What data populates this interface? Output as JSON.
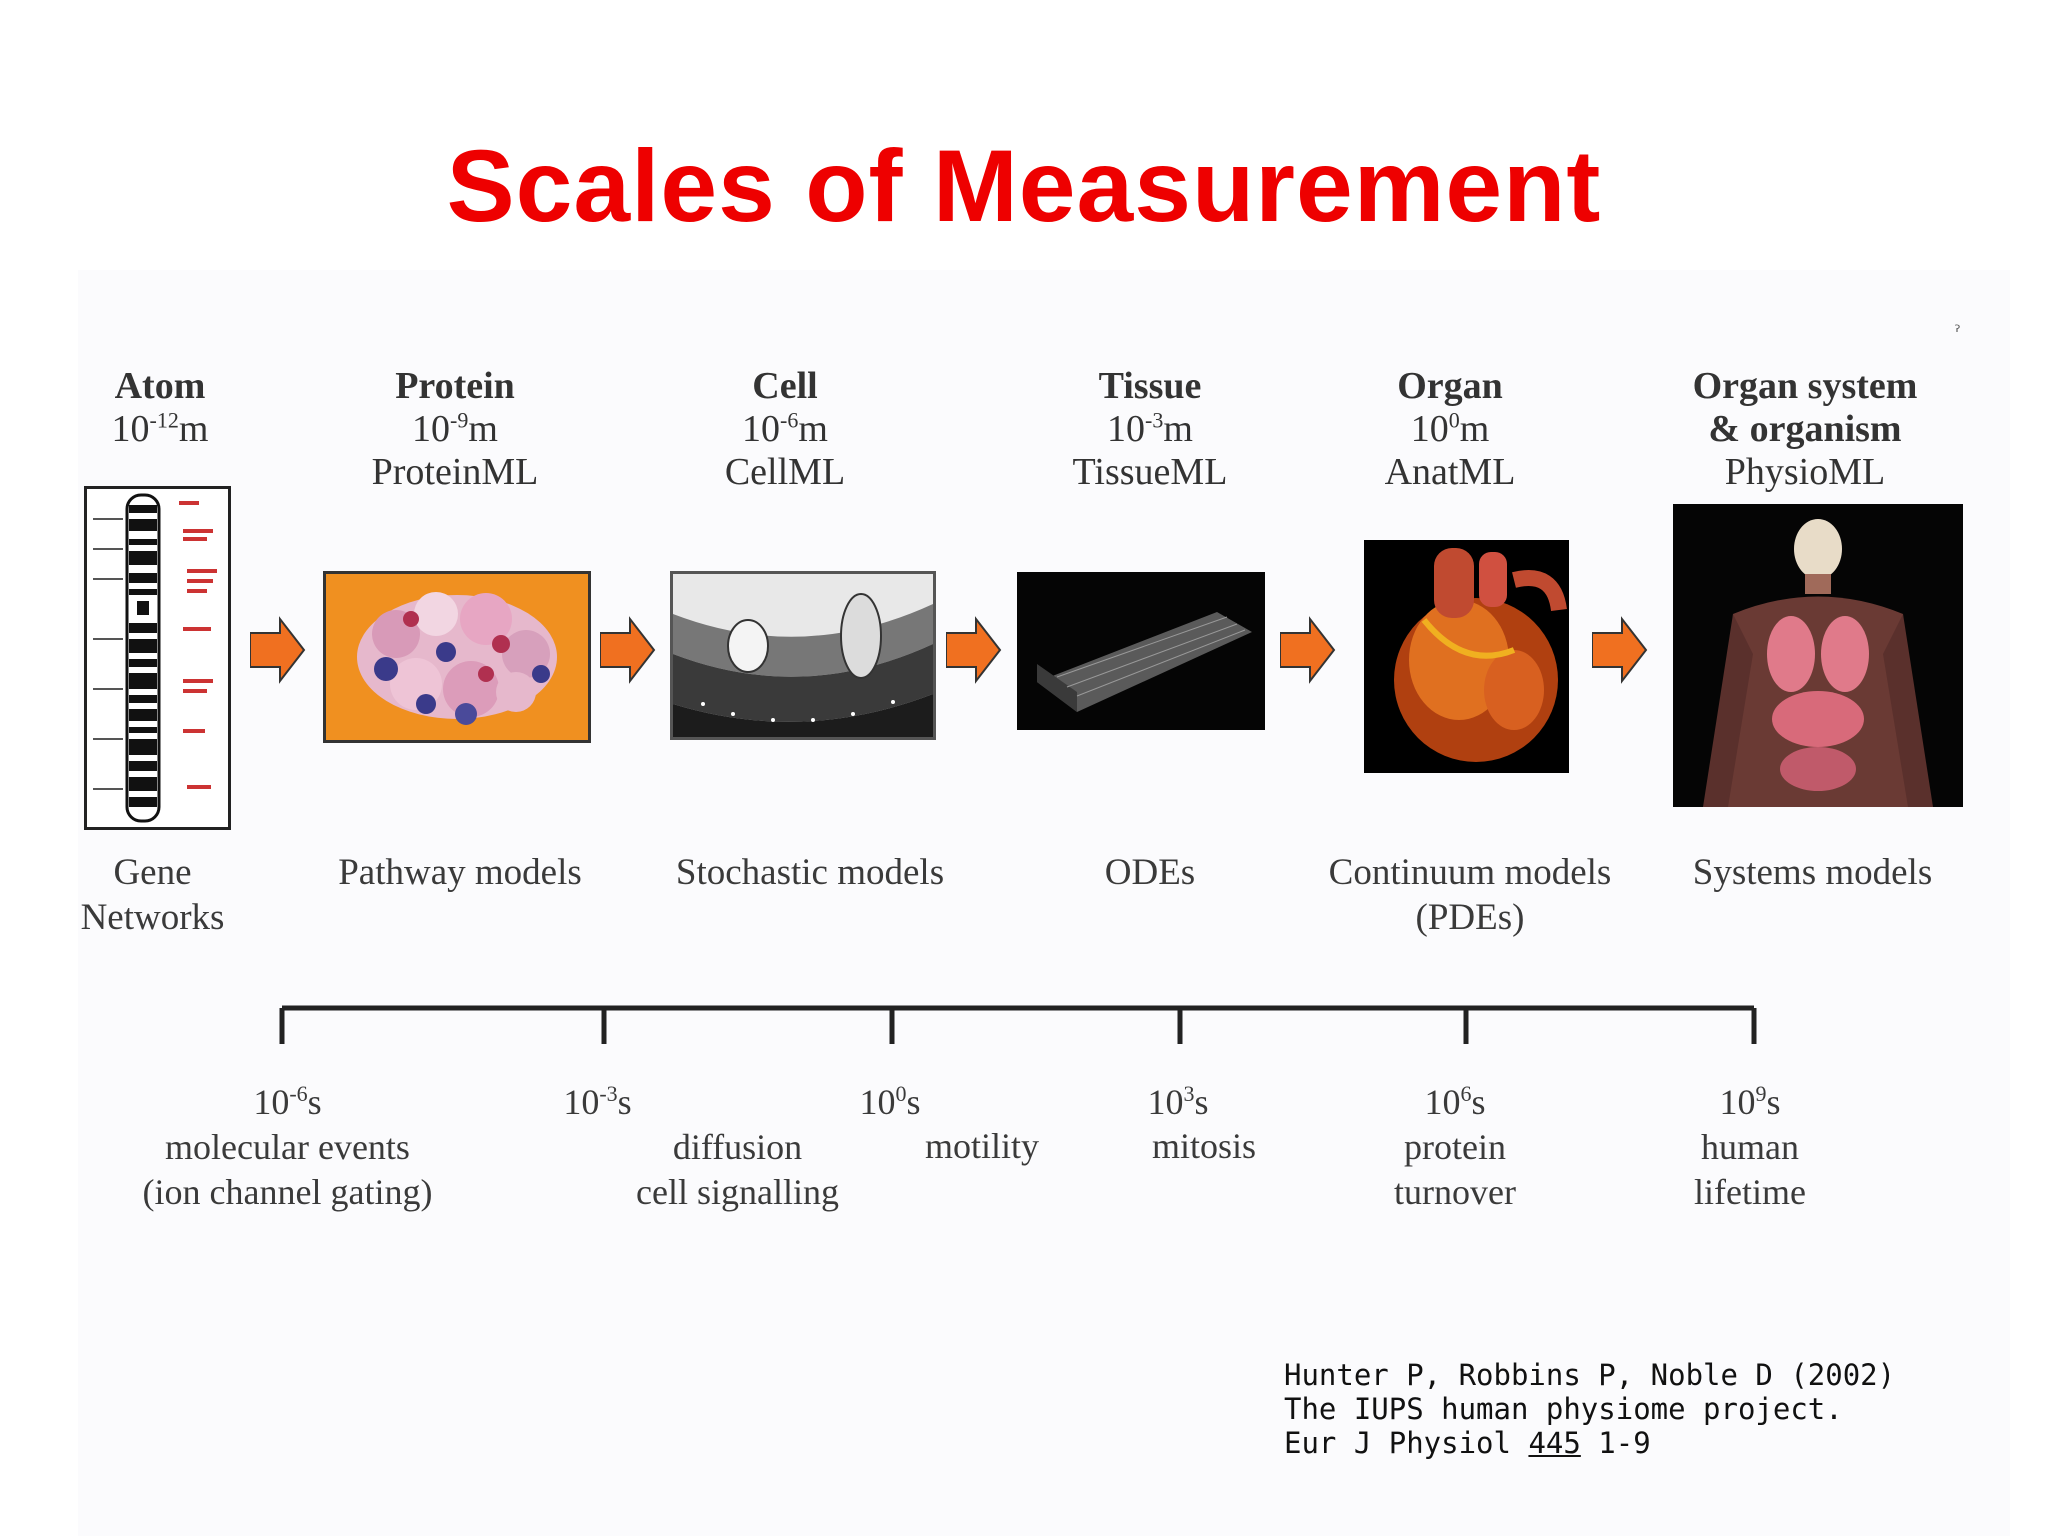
{
  "title": "Scales of Measurement",
  "levels": [
    {
      "name": "Atom",
      "scale_base": "10",
      "scale_exp": "-12",
      "scale_unit": "m",
      "markup": ""
    },
    {
      "name": "Protein",
      "scale_base": "10",
      "scale_exp": "-9",
      "scale_unit": "m",
      "markup": "ProteinML"
    },
    {
      "name": "Cell",
      "scale_base": "10",
      "scale_exp": "-6",
      "scale_unit": "m",
      "markup": "CellML"
    },
    {
      "name": "Tissue",
      "scale_base": "10",
      "scale_exp": "-3",
      "scale_unit": "m",
      "markup": "TissueML"
    },
    {
      "name": "Organ",
      "scale_base": "10",
      "scale_exp": "0",
      "scale_unit": "m",
      "markup": "AnatML"
    },
    {
      "name": "Organ system",
      "name2": "& organism",
      "scale_base": "",
      "scale_exp": "",
      "scale_unit": "",
      "markup": "PhysioML"
    }
  ],
  "models": [
    {
      "line1": "Gene",
      "line2": "Networks"
    },
    {
      "line1": "Pathway models",
      "line2": ""
    },
    {
      "line1": "Stochastic models",
      "line2": ""
    },
    {
      "line1": "ODEs",
      "line2": ""
    },
    {
      "line1": "Continuum models",
      "line2": "(PDEs)"
    },
    {
      "line1": "Systems models",
      "line2": ""
    }
  ],
  "timescale": [
    {
      "base": "10",
      "exp": "-6",
      "unit": "s",
      "line1": "molecular events",
      "line2": "(ion channel gating)"
    },
    {
      "base": "10",
      "exp": "-3",
      "unit": "s",
      "line1": "diffusion",
      "line2": "cell signalling"
    },
    {
      "base": "10",
      "exp": "0",
      "unit": "s",
      "line1": "",
      "line2": ""
    },
    {
      "base": "10",
      "exp": "3",
      "unit": "s",
      "line1": "",
      "line2": ""
    },
    {
      "base": "10",
      "exp": "6",
      "unit": "s",
      "line1": "protein",
      "line2": "turnover"
    },
    {
      "base": "10",
      "exp": "9",
      "unit": "s",
      "line1": "human",
      "line2": "lifetime"
    }
  ],
  "between_notes": {
    "motility": "motility",
    "mitosis": "mitosis"
  },
  "citation": {
    "line1": "Hunter P, Robbins P, Noble D (2002)",
    "line2": "The IUPS human physiome project.",
    "line3_prefix": "Eur J Physiol ",
    "line3_volume": "445",
    "line3_suffix": " 1-9"
  },
  "colors": {
    "title": "#ee0000",
    "arrow": "#f07020",
    "protein_bg": "#f09020"
  }
}
